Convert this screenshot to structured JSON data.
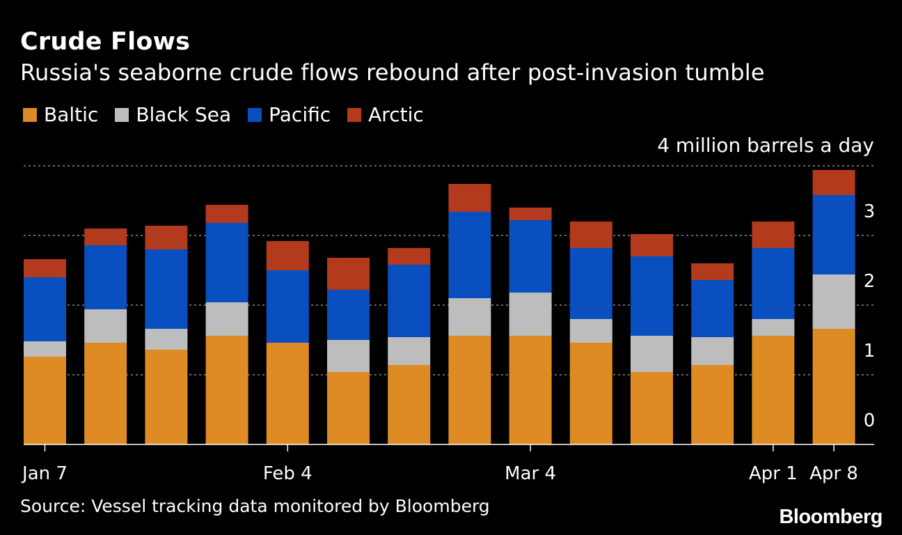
{
  "chart_data": {
    "type": "bar",
    "stacked": true,
    "title": "Crude Flows",
    "subtitle": "Russia's seaborne crude flows rebound after post-invasion tumble",
    "units_label": "4 million barrels a day",
    "categories": [
      "Jan 7",
      "Jan 14",
      "Jan 21",
      "Jan 28",
      "Feb 4",
      "Feb 11",
      "Feb 18",
      "Feb 25",
      "Mar 4",
      "Mar 11",
      "Mar 18",
      "Mar 25",
      "Apr 1",
      "Apr 8"
    ],
    "x_tick_labels": [
      "Jan 7",
      "Feb 4",
      "Mar 4",
      "Apr 1",
      "Apr 8"
    ],
    "series": [
      {
        "name": "Baltic",
        "color": "#DE8B24",
        "values": [
          1.26,
          1.46,
          1.36,
          1.56,
          1.46,
          1.04,
          1.14,
          1.56,
          1.56,
          1.46,
          1.04,
          1.14,
          1.56,
          1.66
        ]
      },
      {
        "name": "Black Sea",
        "color": "#BDBDBD",
        "values": [
          0.22,
          0.48,
          0.3,
          0.48,
          0.0,
          0.46,
          0.4,
          0.54,
          0.62,
          0.34,
          0.52,
          0.4,
          0.24,
          0.78
        ]
      },
      {
        "name": "Pacific",
        "color": "#0A4FC0",
        "values": [
          0.92,
          0.92,
          1.14,
          1.14,
          1.04,
          0.72,
          1.04,
          1.24,
          1.04,
          1.02,
          1.14,
          0.82,
          1.02,
          1.14
        ]
      },
      {
        "name": "Arctic",
        "color": "#B33A1C",
        "values": [
          0.26,
          0.24,
          0.34,
          0.26,
          0.42,
          0.46,
          0.24,
          0.4,
          0.18,
          0.38,
          0.32,
          0.24,
          0.38,
          0.36
        ]
      }
    ],
    "ylim": [
      0,
      4
    ],
    "y_ticks": [
      0,
      1,
      2,
      3
    ],
    "grid": true,
    "legend_position": "top-left"
  },
  "source": "Source: Vessel tracking data monitored by Bloomberg",
  "brand": "Bloomberg"
}
